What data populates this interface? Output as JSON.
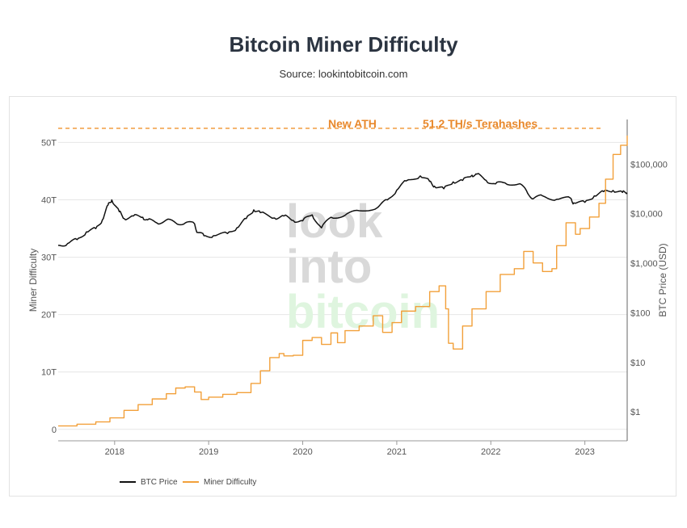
{
  "title": "Bitcoin Miner Difficulty",
  "subtitle": "Source: lookintobitcoin.com",
  "watermark": [
    "look",
    "into",
    "bitcoin"
  ],
  "colors": {
    "btc_price": "#111111",
    "miner_difficulty": "#f2a03a",
    "ath_line": "#f0932e",
    "annotation": "#e8882b",
    "watermark_gray": "#d9d9d9",
    "watermark_green": "#dff5df"
  },
  "chart_data": {
    "type": "line",
    "title": "Bitcoin Miner Difficulty",
    "x_axis": {
      "ticks": [
        "2018",
        "2019",
        "2020",
        "2021",
        "2022",
        "2023"
      ],
      "range": [
        2017.4,
        2023.45
      ]
    },
    "y_left": {
      "label": "Miner Difficulty",
      "ticks": [
        "0",
        "10T",
        "20T",
        "30T",
        "40T",
        "50T"
      ],
      "range": [
        -2,
        54
      ]
    },
    "y_right": {
      "label": "BTC Price (USD)",
      "scale": "log",
      "ticks": [
        "$1",
        "$10",
        "$100",
        "$1,000",
        "$10,000",
        "$100,000"
      ],
      "range": [
        0.26,
        800000
      ]
    },
    "annotations": {
      "left": "New ATH",
      "right": "51.2 TH/s Terahashes",
      "ath_value": 51.2
    },
    "legend": {
      "position": "bottom-left",
      "items": [
        "BTC Price",
        "Miner Difficulty"
      ]
    },
    "grid": true,
    "series": [
      {
        "name": "BTC Price",
        "axis": "right",
        "points": [
          [
            2017.4,
            2300
          ],
          [
            2017.5,
            2500
          ],
          [
            2017.6,
            3000
          ],
          [
            2017.7,
            4300
          ],
          [
            2017.8,
            5000
          ],
          [
            2017.87,
            7500
          ],
          [
            2017.93,
            15000
          ],
          [
            2017.97,
            19000
          ],
          [
            2018.05,
            11000
          ],
          [
            2018.1,
            8000
          ],
          [
            2018.2,
            9000
          ],
          [
            2018.3,
            8500
          ],
          [
            2018.35,
            7500
          ],
          [
            2018.45,
            6500
          ],
          [
            2018.55,
            7500
          ],
          [
            2018.65,
            6500
          ],
          [
            2018.75,
            6500
          ],
          [
            2018.85,
            6300
          ],
          [
            2018.88,
            4200
          ],
          [
            2018.95,
            3600
          ],
          [
            2019.05,
            3600
          ],
          [
            2019.2,
            4000
          ],
          [
            2019.3,
            5200
          ],
          [
            2019.4,
            8000
          ],
          [
            2019.48,
            12000
          ],
          [
            2019.55,
            10500
          ],
          [
            2019.7,
            8200
          ],
          [
            2019.8,
            9000
          ],
          [
            2019.9,
            7300
          ],
          [
            2020.0,
            7200
          ],
          [
            2020.1,
            9500
          ],
          [
            2020.2,
            5200
          ],
          [
            2020.3,
            8500
          ],
          [
            2020.45,
            9300
          ],
          [
            2020.6,
            11500
          ],
          [
            2020.8,
            13500
          ],
          [
            2020.9,
            19000
          ],
          [
            2021.0,
            30000
          ],
          [
            2021.1,
            46000
          ],
          [
            2021.25,
            58000
          ],
          [
            2021.35,
            45000
          ],
          [
            2021.4,
            36000
          ],
          [
            2021.5,
            32000
          ],
          [
            2021.6,
            44000
          ],
          [
            2021.7,
            47000
          ],
          [
            2021.8,
            60000
          ],
          [
            2021.85,
            63000
          ],
          [
            2021.95,
            47000
          ],
          [
            2022.05,
            40000
          ],
          [
            2022.15,
            42000
          ],
          [
            2022.3,
            40000
          ],
          [
            2022.38,
            29000
          ],
          [
            2022.45,
            20000
          ],
          [
            2022.55,
            23000
          ],
          [
            2022.7,
            19500
          ],
          [
            2022.85,
            20500
          ],
          [
            2022.88,
            16500
          ],
          [
            2023.0,
            17000
          ],
          [
            2023.1,
            23000
          ],
          [
            2023.2,
            28000
          ],
          [
            2023.3,
            29500
          ],
          [
            2023.4,
            27000
          ],
          [
            2023.45,
            26500
          ]
        ]
      },
      {
        "name": "Miner Difficulty",
        "axis": "left",
        "points": [
          [
            2017.4,
            0.6
          ],
          [
            2017.6,
            0.9
          ],
          [
            2017.8,
            1.3
          ],
          [
            2017.95,
            2.0
          ],
          [
            2018.1,
            3.3
          ],
          [
            2018.25,
            4.3
          ],
          [
            2018.4,
            5.3
          ],
          [
            2018.55,
            6.2
          ],
          [
            2018.65,
            7.2
          ],
          [
            2018.75,
            7.4
          ],
          [
            2018.85,
            6.5
          ],
          [
            2018.92,
            5.2
          ],
          [
            2019.0,
            5.6
          ],
          [
            2019.15,
            6.1
          ],
          [
            2019.3,
            6.4
          ],
          [
            2019.45,
            8.0
          ],
          [
            2019.55,
            10.2
          ],
          [
            2019.65,
            12.5
          ],
          [
            2019.75,
            13.2
          ],
          [
            2019.8,
            12.8
          ],
          [
            2019.9,
            12.9
          ],
          [
            2020.0,
            15.5
          ],
          [
            2020.1,
            16.0
          ],
          [
            2020.2,
            14.8
          ],
          [
            2020.3,
            16.8
          ],
          [
            2020.37,
            15.1
          ],
          [
            2020.45,
            17.2
          ],
          [
            2020.6,
            18.0
          ],
          [
            2020.75,
            19.8
          ],
          [
            2020.85,
            16.9
          ],
          [
            2020.95,
            18.6
          ],
          [
            2021.05,
            20.6
          ],
          [
            2021.2,
            21.4
          ],
          [
            2021.35,
            24.0
          ],
          [
            2021.45,
            25.0
          ],
          [
            2021.52,
            21.0
          ],
          [
            2021.55,
            15.0
          ],
          [
            2021.6,
            14.0
          ],
          [
            2021.7,
            18.0
          ],
          [
            2021.8,
            21.0
          ],
          [
            2021.95,
            24.0
          ],
          [
            2022.1,
            27.0
          ],
          [
            2022.25,
            28.0
          ],
          [
            2022.35,
            31.0
          ],
          [
            2022.45,
            29.0
          ],
          [
            2022.55,
            27.5
          ],
          [
            2022.65,
            28.0
          ],
          [
            2022.7,
            32.0
          ],
          [
            2022.8,
            36.0
          ],
          [
            2022.9,
            34.0
          ],
          [
            2022.95,
            35.0
          ],
          [
            2023.05,
            37.0
          ],
          [
            2023.15,
            39.4
          ],
          [
            2023.22,
            43.6
          ],
          [
            2023.3,
            47.9
          ],
          [
            2023.38,
            49.5
          ],
          [
            2023.45,
            51.2
          ]
        ]
      }
    ]
  }
}
